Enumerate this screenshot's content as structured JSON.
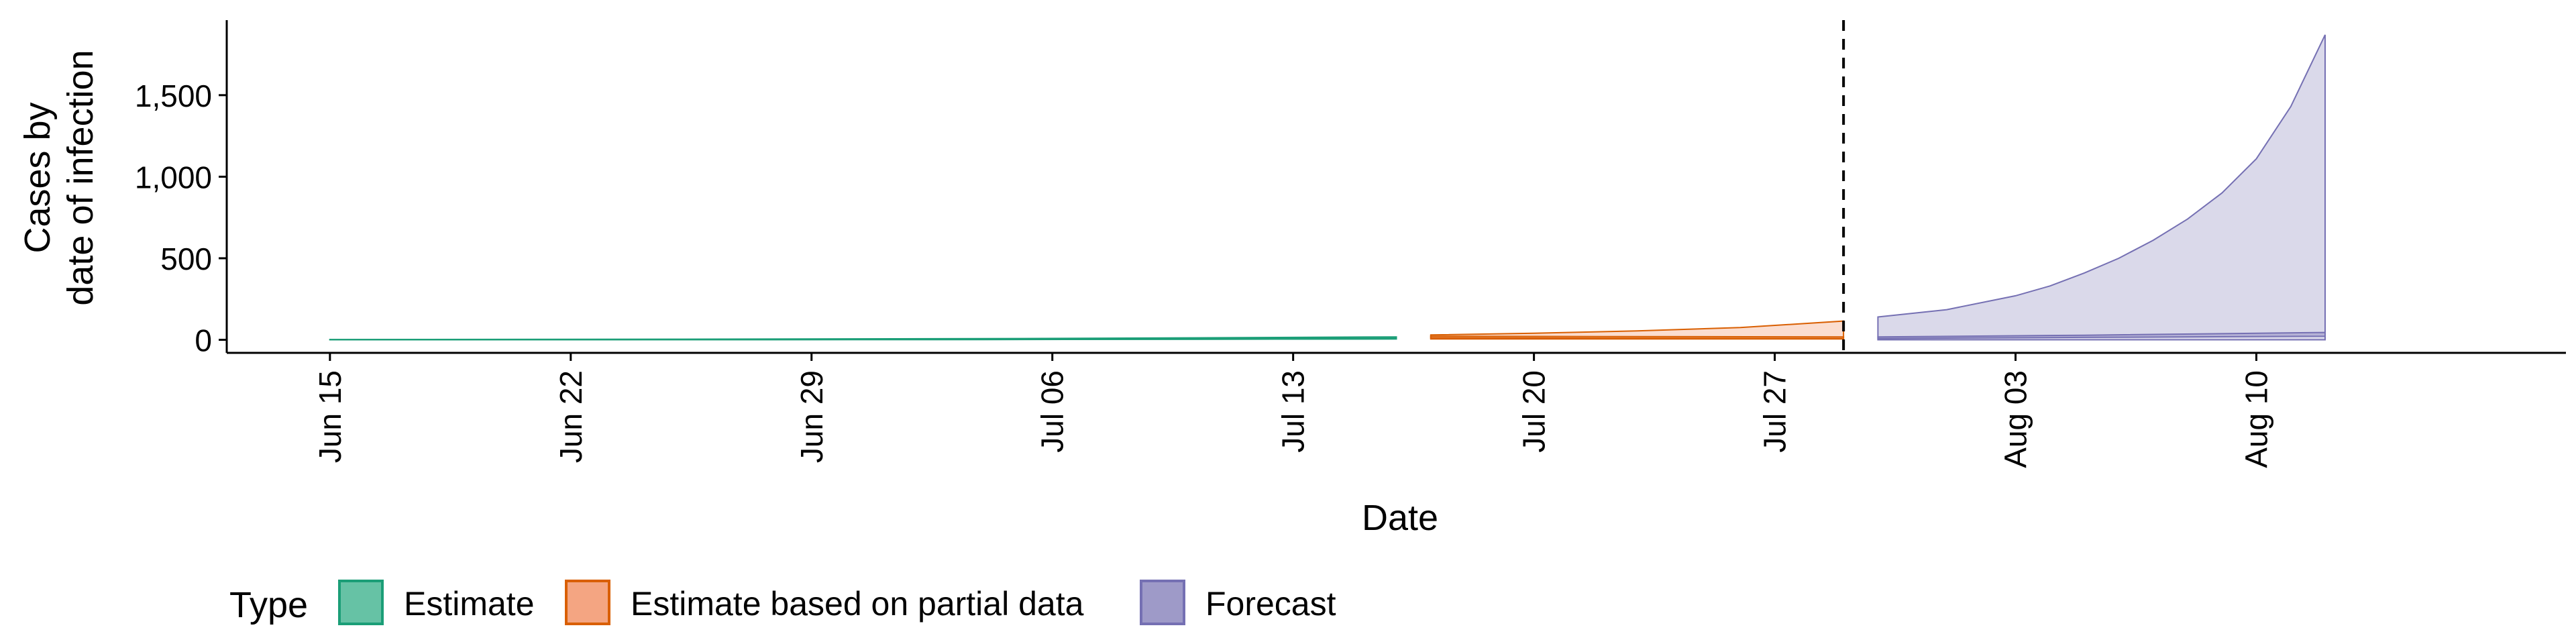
{
  "chart_data": {
    "type": "area",
    "title": "",
    "xlabel": "Date",
    "ylabel_lines": [
      "Cases by",
      "date of infection"
    ],
    "x_axis": {
      "type": "date",
      "range": [
        "2020-06-12",
        "2020-08-19"
      ],
      "ticks": [
        {
          "date": "2020-06-15",
          "label": "Jun 15"
        },
        {
          "date": "2020-06-22",
          "label": "Jun 22"
        },
        {
          "date": "2020-06-29",
          "label": "Jun 29"
        },
        {
          "date": "2020-07-06",
          "label": "Jul 06"
        },
        {
          "date": "2020-07-13",
          "label": "Jul 13"
        },
        {
          "date": "2020-07-20",
          "label": "Jul 20"
        },
        {
          "date": "2020-07-27",
          "label": "Jul 27"
        },
        {
          "date": "2020-08-03",
          "label": "Aug 03"
        },
        {
          "date": "2020-08-10",
          "label": "Aug 10"
        }
      ]
    },
    "y_axis": {
      "range": [
        -80,
        1960
      ],
      "ticks": [
        {
          "value": 0,
          "label": "0"
        },
        {
          "value": 500,
          "label": "500"
        },
        {
          "value": 1000,
          "label": "1,000"
        },
        {
          "value": 1500,
          "label": "1,500"
        }
      ]
    },
    "grid": false,
    "vline": {
      "date": "2020-07-29",
      "style": "dashed"
    },
    "series": [
      {
        "name": "Estimate",
        "fill": "#66c2a5",
        "stroke": "#1b9e77",
        "inner_band": [
          {
            "x": "2020-06-15",
            "lo": 0,
            "hi": 1
          },
          {
            "x": "2020-07-01",
            "lo": 1,
            "hi": 3
          },
          {
            "x": "2020-07-10",
            "lo": 3,
            "hi": 6
          },
          {
            "x": "2020-07-16",
            "lo": 6,
            "hi": 10
          }
        ],
        "outer_band": [
          {
            "x": "2020-06-15",
            "lo": 0,
            "hi": 2
          },
          {
            "x": "2020-06-25",
            "lo": 1,
            "hi": 4
          },
          {
            "x": "2020-07-04",
            "lo": 2,
            "hi": 7
          },
          {
            "x": "2020-07-10",
            "lo": 4,
            "hi": 12
          },
          {
            "x": "2020-07-16",
            "lo": 5,
            "hi": 18
          }
        ]
      },
      {
        "name": "Estimate based on partial data",
        "fill": "#f4a582",
        "stroke": "#d95f02",
        "inner_band": [
          {
            "x": "2020-07-17",
            "lo": 12,
            "hi": 22
          },
          {
            "x": "2020-07-22",
            "lo": 10,
            "hi": 20
          },
          {
            "x": "2020-07-29",
            "lo": 8,
            "hi": 18
          }
        ],
        "outer_band": [
          {
            "x": "2020-07-17",
            "lo": 5,
            "hi": 30
          },
          {
            "x": "2020-07-20",
            "lo": 5,
            "hi": 40
          },
          {
            "x": "2020-07-23",
            "lo": 5,
            "hi": 55
          },
          {
            "x": "2020-07-26",
            "lo": 5,
            "hi": 75
          },
          {
            "x": "2020-07-29",
            "lo": 5,
            "hi": 115
          }
        ]
      },
      {
        "name": "Forecast",
        "fill": "#9e9ac8",
        "stroke": "#7570b3",
        "inner_band": [
          {
            "x": "2020-07-30",
            "lo": 8,
            "hi": 18
          },
          {
            "x": "2020-08-05",
            "lo": 15,
            "hi": 28
          },
          {
            "x": "2020-08-12",
            "lo": 22,
            "hi": 45
          }
        ],
        "outer_band": [
          {
            "x": "2020-07-30",
            "lo": 0,
            "hi": 140
          },
          {
            "x": "2020-08-01",
            "lo": 0,
            "hi": 185
          },
          {
            "x": "2020-08-03",
            "lo": 0,
            "hi": 270
          },
          {
            "x": "2020-08-04",
            "lo": 0,
            "hi": 330
          },
          {
            "x": "2020-08-05",
            "lo": 0,
            "hi": 410
          },
          {
            "x": "2020-08-06",
            "lo": 0,
            "hi": 500
          },
          {
            "x": "2020-08-07",
            "lo": 0,
            "hi": 610
          },
          {
            "x": "2020-08-08",
            "lo": 0,
            "hi": 740
          },
          {
            "x": "2020-08-09",
            "lo": 0,
            "hi": 900
          },
          {
            "x": "2020-08-10",
            "lo": 0,
            "hi": 1110
          },
          {
            "x": "2020-08-11",
            "lo": 0,
            "hi": 1430
          },
          {
            "x": "2020-08-12",
            "lo": 0,
            "hi": 1870
          }
        ]
      }
    ],
    "legend": {
      "title": "Type",
      "position": "bottom-left",
      "items": [
        "Estimate",
        "Estimate based on partial data",
        "Forecast"
      ]
    }
  }
}
